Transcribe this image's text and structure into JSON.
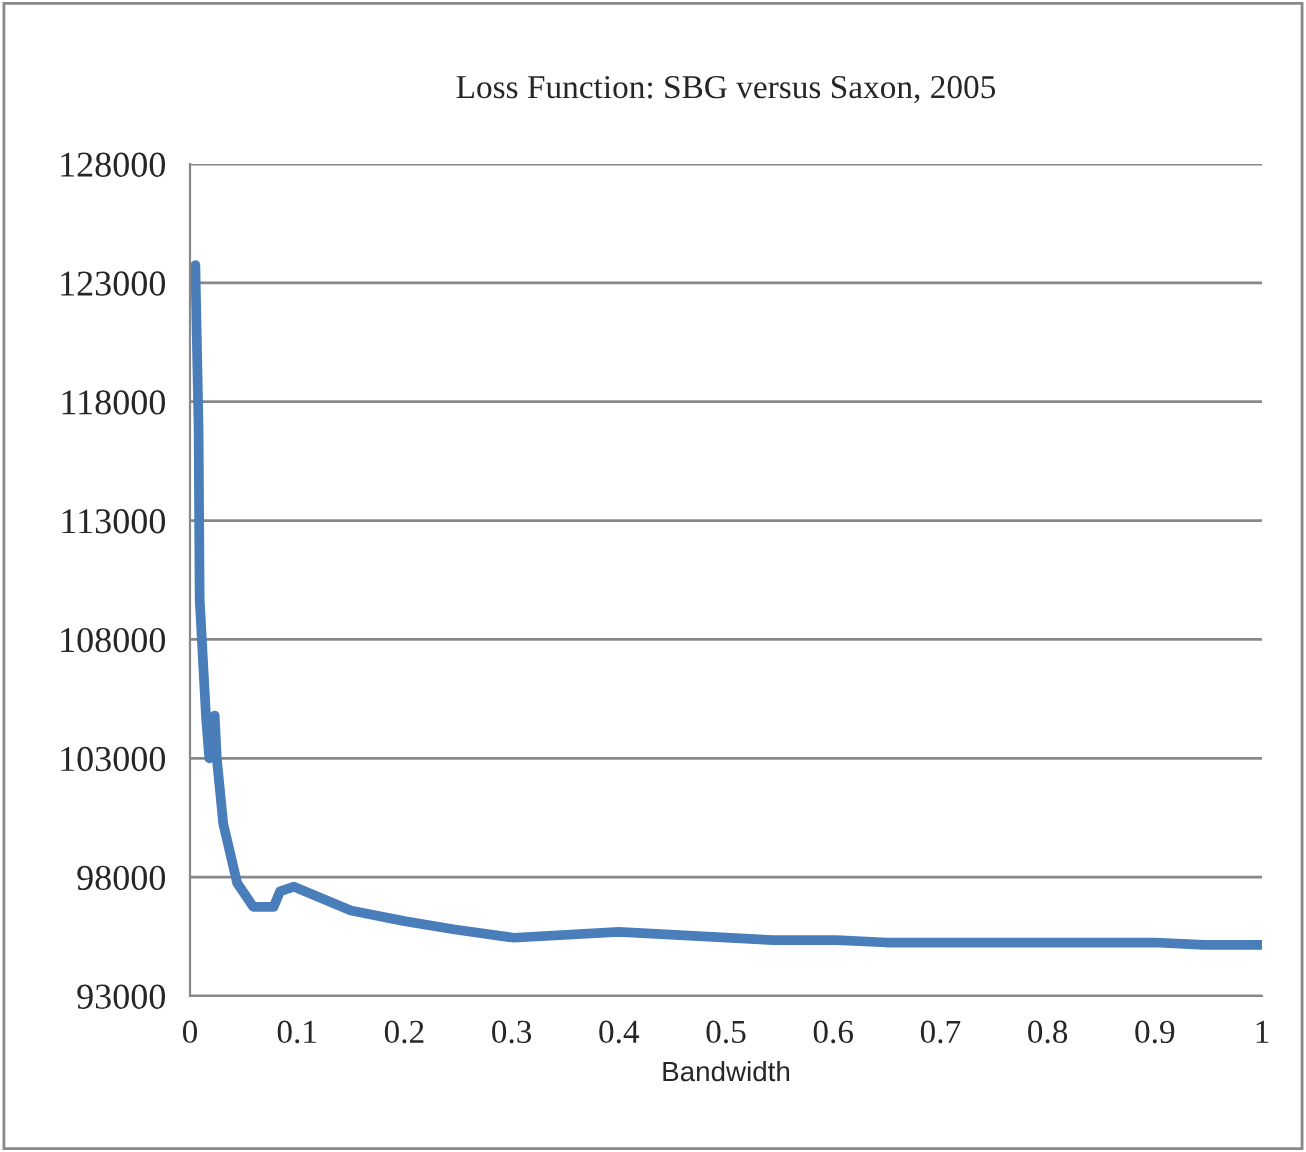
{
  "chart_data": {
    "type": "line",
    "title": "Loss Function: SBG versus Saxon, 2005",
    "xlabel": "Bandwidth",
    "x": [
      0.005,
      0.008,
      0.009,
      0.015,
      0.018,
      0.023,
      0.025,
      0.031,
      0.044,
      0.059,
      0.078,
      0.084,
      0.097,
      0.15,
      0.2,
      0.247,
      0.302,
      0.4,
      0.544,
      0.603,
      0.65,
      0.9,
      0.946,
      1.0
    ],
    "series": [
      {
        "color": "#4a7ebb",
        "values": [
          123750,
          116900,
          109700,
          104700,
          103000,
          104800,
          103000,
          100250,
          97750,
          96750,
          96750,
          97400,
          97600,
          96600,
          96150,
          95800,
          95450,
          95700,
          95350,
          95350,
          95250,
          95250,
          95150,
          95150
        ]
      }
    ],
    "xlim": [
      0,
      1
    ],
    "xticks": [
      0,
      0.1,
      0.2,
      0.3,
      0.4,
      0.5,
      0.6,
      0.7,
      0.8,
      0.9,
      1
    ],
    "ylim": [
      93000,
      128000
    ],
    "yticks": [
      93000,
      98000,
      103000,
      108000,
      113000,
      118000,
      123000,
      128000
    ],
    "grid": "y"
  }
}
